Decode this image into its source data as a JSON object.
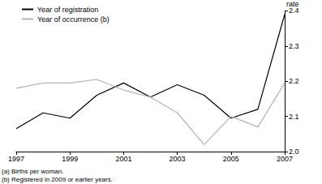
{
  "chart_data": {
    "type": "line",
    "ylabel": "rate",
    "x": [
      1997,
      1998,
      1999,
      2000,
      2001,
      2002,
      2003,
      2004,
      2005,
      2006,
      2007
    ],
    "series": [
      {
        "name": "Year of registration",
        "color": "#000000",
        "values": [
          2.065,
          2.11,
          2.095,
          2.16,
          2.195,
          2.155,
          2.19,
          2.16,
          2.095,
          2.12,
          2.39
        ]
      },
      {
        "name": "Year of occurrence (b)",
        "color": "#b3b3b3",
        "values": [
          2.18,
          2.195,
          2.195,
          2.205,
          2.175,
          2.155,
          2.11,
          2.02,
          2.1,
          2.07,
          2.195
        ]
      }
    ],
    "xlim": [
      1997,
      2007
    ],
    "xticks": [
      1997,
      1999,
      2001,
      2003,
      2005,
      2007
    ],
    "ylim": [
      2,
      2.4
    ],
    "yticks": [
      {
        "value": 2,
        "label": "2.0"
      },
      2.1,
      2.2,
      2.3,
      {
        "value": 2.4,
        "label": "2.4"
      }
    ],
    "grid": false,
    "legend": "top-left",
    "annotations": [
      "(a) Births per woman.",
      "(b) Registered in 2009 or earlier years."
    ]
  }
}
